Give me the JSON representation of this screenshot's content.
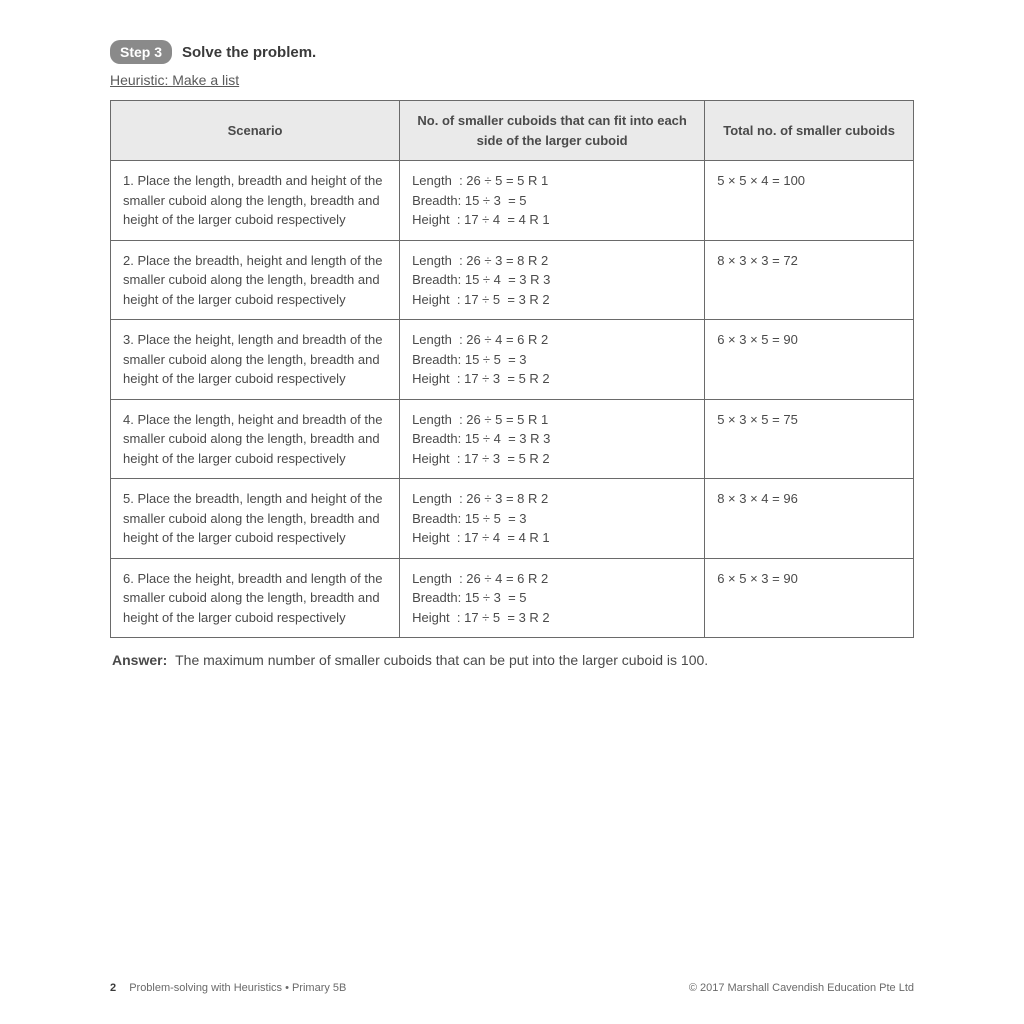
{
  "step": {
    "badge": "Step 3",
    "title": "Solve the problem."
  },
  "heuristic": "Heuristic: Make a list",
  "table": {
    "headers": {
      "scenario": "Scenario",
      "calc": "No. of smaller cuboids that can fit into each side of the larger cuboid",
      "total": "Total no. of smaller cuboids"
    },
    "rows": [
      {
        "scenario": "1. Place the length, breadth and height of the smaller cuboid along the length, breadth and height of the larger cuboid respectively",
        "length": "Length  : 26 ÷ 5 = 5 R 1",
        "breadth": "Breadth: 15 ÷ 3  = 5",
        "height": "Height  : 17 ÷ 4  = 4 R 1",
        "total": "5 × 5 × 4 = 100"
      },
      {
        "scenario": "2. Place the breadth, height and length of the smaller cuboid along the length, breadth and height of the larger cuboid respectively",
        "length": "Length  : 26 ÷ 3 = 8 R 2",
        "breadth": "Breadth: 15 ÷ 4  = 3 R 3",
        "height": "Height  : 17 ÷ 5  = 3 R 2",
        "total": "8 × 3 × 3 = 72"
      },
      {
        "scenario": "3. Place the height, length and breadth of the smaller cuboid along the length, breadth and height of the larger cuboid respectively",
        "length": "Length  : 26 ÷ 4 = 6 R 2",
        "breadth": "Breadth: 15 ÷ 5  = 3",
        "height": "Height  : 17 ÷ 3  = 5 R 2",
        "total": "6 × 3 × 5 = 90"
      },
      {
        "scenario": "4. Place the length, height and breadth of the smaller cuboid along the length, breadth and height of the larger cuboid respectively",
        "length": "Length  : 26 ÷ 5 = 5 R 1",
        "breadth": "Breadth: 15 ÷ 4  = 3 R 3",
        "height": "Height  : 17 ÷ 3  = 5 R 2",
        "total": "5 × 3 × 5 = 75"
      },
      {
        "scenario": "5. Place the breadth, length and height of the smaller cuboid along the length, breadth and height of the larger cuboid respectively",
        "length": "Length  : 26 ÷ 3 = 8 R 2",
        "breadth": "Breadth: 15 ÷ 5  = 3",
        "height": "Height  : 17 ÷ 4  = 4 R 1",
        "total": "8 × 3 × 4 = 96"
      },
      {
        "scenario": "6. Place the height, breadth and length of the smaller cuboid along the length, breadth and height of the larger cuboid respectively",
        "length": "Length  : 26 ÷ 4 = 6 R 2",
        "breadth": "Breadth: 15 ÷ 3  = 5",
        "height": "Height  : 17 ÷ 5  = 3 R 2",
        "total": "6 × 5 × 3 = 90"
      }
    ]
  },
  "answer": {
    "label": "Answer:",
    "text": "The maximum number of smaller cuboids that can be put into the larger cuboid is 100."
  },
  "footer": {
    "page": "2",
    "book": "Problem-solving with Heuristics • Primary 5B",
    "copyright": "© 2017 Marshall Cavendish Education Pte Ltd"
  },
  "styling": {
    "badge_bg": "#8a8a8a",
    "badge_fg": "#ffffff",
    "header_bg": "#eaeaea",
    "border_color": "#6a6a6a",
    "text_color": "#4a4a4a",
    "page_bg": "#ffffff"
  }
}
